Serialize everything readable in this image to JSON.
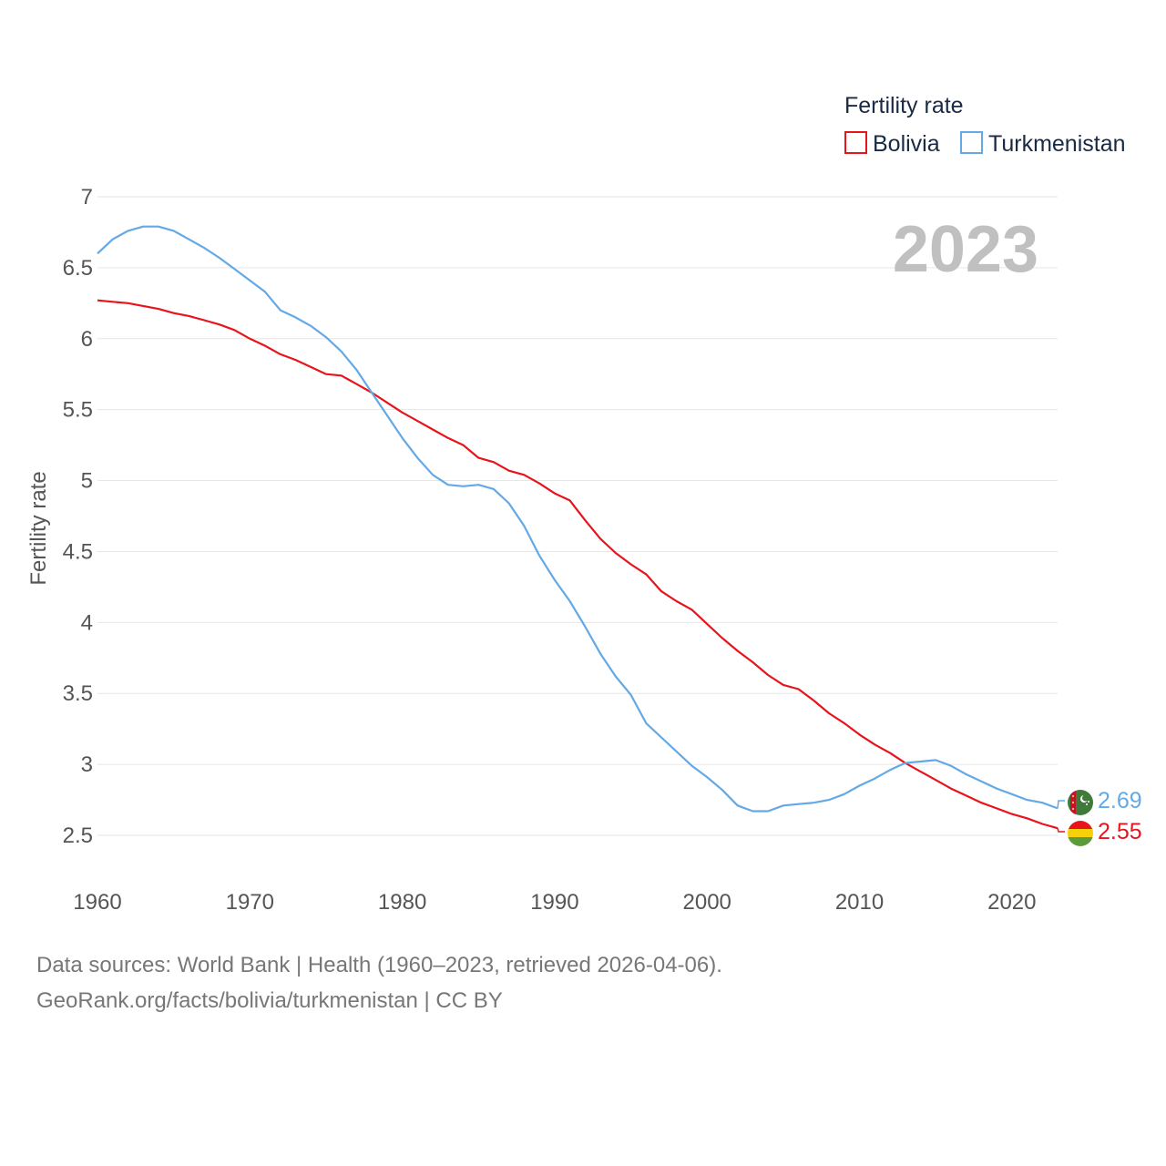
{
  "chart_data": {
    "type": "line",
    "title": "Fertility rate",
    "ylabel": "Fertility rate",
    "xlabel": "",
    "year_label": "2023",
    "ylim": [
      2.5,
      7
    ],
    "xlim": [
      1960,
      2023
    ],
    "y_ticks": [
      "2.5",
      "3",
      "3.5",
      "4",
      "4.5",
      "5",
      "5.5",
      "6",
      "6.5",
      "7"
    ],
    "x_ticks": [
      "1960",
      "1970",
      "1980",
      "1990",
      "2000",
      "2010",
      "2020"
    ],
    "grid": true,
    "legend_position": "top-right",
    "x": [
      1960,
      1961,
      1962,
      1963,
      1964,
      1965,
      1966,
      1967,
      1968,
      1969,
      1970,
      1971,
      1972,
      1973,
      1974,
      1975,
      1976,
      1977,
      1978,
      1979,
      1980,
      1981,
      1982,
      1983,
      1984,
      1985,
      1986,
      1987,
      1988,
      1989,
      1990,
      1991,
      1992,
      1993,
      1994,
      1995,
      1996,
      1997,
      1998,
      1999,
      2000,
      2001,
      2002,
      2003,
      2004,
      2005,
      2006,
      2007,
      2008,
      2009,
      2010,
      2011,
      2012,
      2013,
      2014,
      2015,
      2016,
      2017,
      2018,
      2019,
      2020,
      2021,
      2022,
      2023
    ],
    "series": [
      {
        "name": "Bolivia",
        "color": "#e8141c",
        "end_label": "2.55",
        "values": [
          6.27,
          6.26,
          6.25,
          6.23,
          6.21,
          6.18,
          6.16,
          6.13,
          6.1,
          6.06,
          6.0,
          5.95,
          5.89,
          5.85,
          5.8,
          5.75,
          5.74,
          5.68,
          5.62,
          5.55,
          5.48,
          5.42,
          5.36,
          5.3,
          5.25,
          5.16,
          5.13,
          5.07,
          5.04,
          4.98,
          4.91,
          4.86,
          4.72,
          4.59,
          4.49,
          4.41,
          4.34,
          4.22,
          4.15,
          4.09,
          3.99,
          3.89,
          3.8,
          3.72,
          3.63,
          3.56,
          3.53,
          3.45,
          3.36,
          3.29,
          3.21,
          3.14,
          3.08,
          3.01,
          2.95,
          2.89,
          2.83,
          2.78,
          2.73,
          2.69,
          2.65,
          2.62,
          2.58,
          2.55
        ]
      },
      {
        "name": "Turkmenistan",
        "color": "#63a9e6",
        "end_label": "2.69",
        "values": [
          6.6,
          6.7,
          6.76,
          6.79,
          6.79,
          6.76,
          6.7,
          6.64,
          6.57,
          6.49,
          6.41,
          6.33,
          6.2,
          6.15,
          6.09,
          6.01,
          5.91,
          5.78,
          5.62,
          5.46,
          5.3,
          5.16,
          5.04,
          4.97,
          4.96,
          4.97,
          4.94,
          4.84,
          4.68,
          4.47,
          4.3,
          4.15,
          3.97,
          3.78,
          3.62,
          3.49,
          3.29,
          3.19,
          3.09,
          2.99,
          2.91,
          2.82,
          2.71,
          2.67,
          2.67,
          2.71,
          2.72,
          2.73,
          2.75,
          2.79,
          2.85,
          2.9,
          2.96,
          3.01,
          3.02,
          3.03,
          2.99,
          2.93,
          2.88,
          2.83,
          2.79,
          2.75,
          2.73,
          2.69
        ]
      }
    ],
    "end_markers": [
      {
        "country": "Turkmenistan",
        "icon": "turkmenistan-flag-icon",
        "colors": [
          "#3f7a3a",
          "#c8102e"
        ]
      },
      {
        "country": "Bolivia",
        "icon": "bolivia-flag-icon",
        "colors": [
          "#e8141c",
          "#f6d10a",
          "#5d9a3a"
        ]
      }
    ]
  },
  "footer": {
    "source_line": "Data sources: World Bank | Health (1960–2023, retrieved 2026-04-06).",
    "license_line": "GeoRank.org/facts/bolivia/turkmenistan | CC BY"
  }
}
